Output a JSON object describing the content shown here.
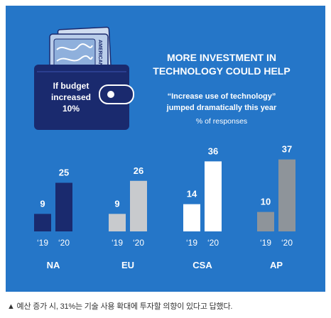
{
  "colors": {
    "background": "#2576c8",
    "wallet": "#1a2a6e",
    "card": "#b9cdea",
    "bar_2019": {
      "NA": "#1a2a6e",
      "EU": "#c8cacd",
      "CSA": "#ffffff",
      "AP": "#8e949a"
    },
    "bar_2020": {
      "NA": "#1a2a6e",
      "EU": "#c8cacd",
      "CSA": "#ffffff",
      "AP": "#8e949a"
    }
  },
  "graphic": {
    "wallet_text": [
      "If budget",
      "increased",
      "10%"
    ],
    "card_text": "AMERICAN",
    "icons": [
      "wallet-icon",
      "credit-card-icon"
    ]
  },
  "caption": "▲ 예산 증가 시, 31%는 기술 사용 확대에 투자할 의향이 있다고 답했다.",
  "chart_data": {
    "type": "bar",
    "title": [
      "MORE INVESTMENT IN",
      "TECHNOLOGY COULD HELP"
    ],
    "subtitle": [
      "“Increase use of technology”",
      "jumped dramatically this year"
    ],
    "unit": "% of responses",
    "groups": [
      "NA",
      "EU",
      "CSA",
      "AP"
    ],
    "categories": [
      "‘19",
      "‘20"
    ],
    "series": [
      {
        "group": "NA",
        "values": [
          9,
          25
        ]
      },
      {
        "group": "EU",
        "values": [
          9,
          26
        ]
      },
      {
        "group": "CSA",
        "values": [
          14,
          36
        ]
      },
      {
        "group": "AP",
        "values": [
          10,
          37
        ]
      }
    ],
    "ylim": [
      0,
      40
    ],
    "grid": false,
    "legend": "none"
  }
}
